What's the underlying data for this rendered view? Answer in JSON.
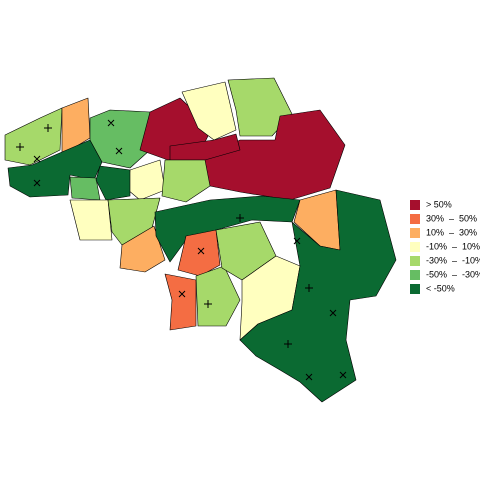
{
  "legend": {
    "items": [
      {
        "label": "> 50%",
        "color": "#a50f2d"
      },
      {
        "label": "30%  –  50%",
        "color": "#f46d43"
      },
      {
        "label": "10%  –  30%",
        "color": "#fdae61"
      },
      {
        "label": "-10%  –  10%",
        "color": "#ffffbf"
      },
      {
        "label": "-30%  –  -10%",
        "color": "#a6d96a"
      },
      {
        "label": "-50%  –  -30%",
        "color": "#66bd63"
      },
      {
        "label": "< -50%",
        "color": "#0b6a32"
      }
    ]
  }
}
